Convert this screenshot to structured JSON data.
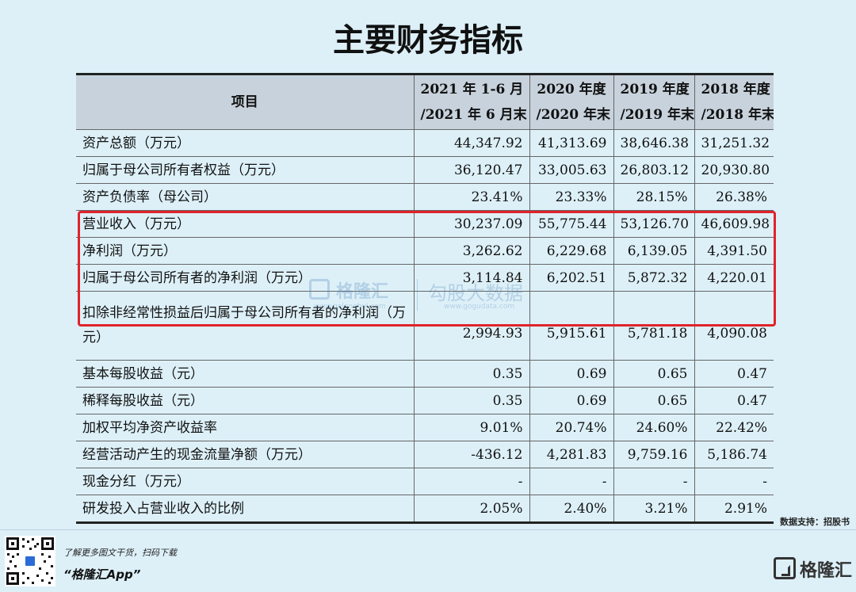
{
  "title": "主要财务指标",
  "table": {
    "header": {
      "item": "项目",
      "columns": [
        {
          "line1": "2021 年 1-6 月",
          "line2": "/2021 年 6 月末"
        },
        {
          "line1": "2020 年度",
          "line2": "/2020 年末"
        },
        {
          "line1": "2019 年度",
          "line2": "/2019 年末"
        },
        {
          "line1": "2018 年度",
          "line2": "/2018 年末"
        }
      ]
    },
    "rows": [
      {
        "label": "资产总额（万元）",
        "values": [
          "44,347.92",
          "41,313.69",
          "38,646.38",
          "31,251.32"
        ]
      },
      {
        "label": "归属于母公司所有者权益（万元）",
        "values": [
          "36,120.47",
          "33,005.63",
          "26,803.12",
          "20,930.80"
        ]
      },
      {
        "label": "资产负债率（母公司）",
        "values": [
          "23.41%",
          "23.33%",
          "28.15%",
          "26.38%"
        ]
      },
      {
        "label": "营业收入（万元）",
        "values": [
          "30,237.09",
          "55,775.44",
          "53,126.70",
          "46,609.98"
        ]
      },
      {
        "label": "净利润（万元）",
        "values": [
          "3,262.62",
          "6,229.68",
          "6,139.05",
          "4,391.50"
        ]
      },
      {
        "label": "归属于母公司所有者的净利润（万元）",
        "values": [
          "3,114.84",
          "6,202.51",
          "5,872.32",
          "4,220.01"
        ]
      },
      {
        "label": "扣除非经常性损益后归属于母公司所有者的净利润（万元）",
        "values": [
          "2,994.93",
          "5,915.61",
          "5,781.18",
          "4,090.08"
        ]
      },
      {
        "label": "基本每股收益（元）",
        "values": [
          "0.35",
          "0.69",
          "0.65",
          "0.47"
        ]
      },
      {
        "label": "稀释每股收益（元）",
        "values": [
          "0.35",
          "0.69",
          "0.65",
          "0.47"
        ]
      },
      {
        "label": "加权平均净资产收益率",
        "values": [
          "9.01%",
          "20.74%",
          "24.60%",
          "22.42%"
        ]
      },
      {
        "label": "经营活动产生的现金流量净额（万元）",
        "values": [
          "-436.12",
          "4,281.83",
          "9,759.16",
          "5,186.74"
        ]
      },
      {
        "label": "现金分红（万元）",
        "values": [
          "-",
          "-",
          "-",
          "-"
        ]
      },
      {
        "label": "研发投入占营业收入的比例",
        "values": [
          "2.05%",
          "2.40%",
          "3.21%",
          "2.91%"
        ]
      }
    ]
  },
  "highlight_color": "#e0232b",
  "watermark": {
    "name": "格隆汇",
    "url": "www.gelonghui.com",
    "brand": "勾股大数据",
    "url2": "www.gogudata.com"
  },
  "source": "数据支持：招股书",
  "footer": {
    "promo": "了解更多图文干货，扫码下载",
    "app": "“格隆汇App”",
    "brand": "格隆汇",
    "qr_icon": "qr-code-icon",
    "brand_icon": "gelonghui-logo-icon"
  }
}
